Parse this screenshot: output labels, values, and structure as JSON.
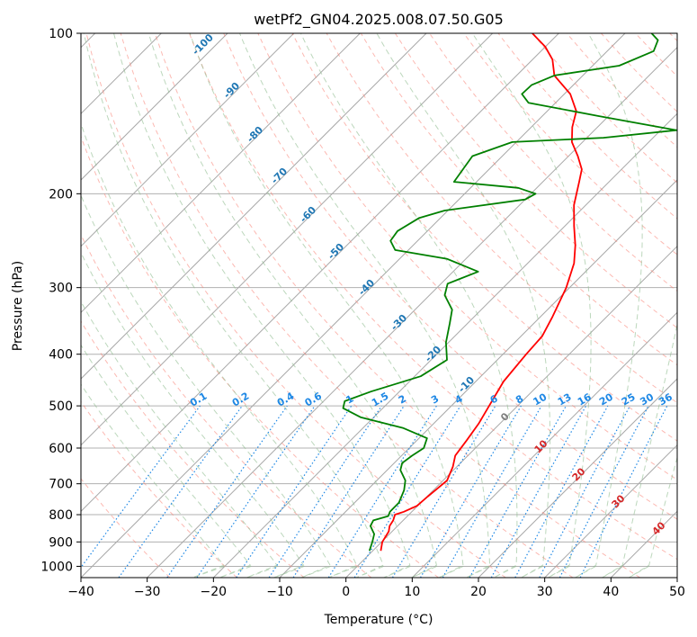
{
  "chart_data": {
    "type": "line",
    "title": "wetPf2_GN04.2025.008.07.50.G05",
    "xlabel": "Temperature (°C)",
    "ylabel": "Pressure (hPa)",
    "xlim": [
      -40,
      50
    ],
    "ylim": [
      1050,
      100
    ],
    "y_scale": "log",
    "x_ticks": [
      "−40",
      "−30",
      "−20",
      "−10",
      "0",
      "10",
      "20",
      "30",
      "40",
      "50"
    ],
    "y_ticks": [
      {
        "p": 100,
        "label": "100"
      },
      {
        "p": 200,
        "label": "200"
      },
      {
        "p": 300,
        "label": "300"
      },
      {
        "p": 400,
        "label": "400"
      },
      {
        "p": 500,
        "label": "500"
      },
      {
        "p": 600,
        "label": "600"
      },
      {
        "p": 700,
        "label": "700"
      },
      {
        "p": 800,
        "label": "800"
      },
      {
        "p": 900,
        "label": "900"
      },
      {
        "p": 1000,
        "label": "1000"
      }
    ],
    "skew_deg": 45,
    "grid": true,
    "series": [
      {
        "color": "#ff0000",
        "points": [
          {
            "p": 935,
            "t": 1.2
          },
          {
            "p": 900,
            "t": 0.1
          },
          {
            "p": 860,
            "t": -0.5
          },
          {
            "p": 840,
            "t": -1.2
          },
          {
            "p": 820,
            "t": -1.5
          },
          {
            "p": 800,
            "t": -2.1
          },
          {
            "p": 790,
            "t": -1.2
          },
          {
            "p": 770,
            "t": -0.1
          },
          {
            "p": 740,
            "t": 0.1
          },
          {
            "p": 720,
            "t": 0.3
          },
          {
            "p": 690,
            "t": 0.6
          },
          {
            "p": 650,
            "t": -0.6
          },
          {
            "p": 620,
            "t": -1.9
          },
          {
            "p": 580,
            "t": -2.5
          },
          {
            "p": 540,
            "t": -3.2
          },
          {
            "p": 500,
            "t": -4.3
          },
          {
            "p": 450,
            "t": -5.8
          },
          {
            "p": 400,
            "t": -6.5
          },
          {
            "p": 370,
            "t": -6.8
          },
          {
            "p": 340,
            "t": -8.2
          },
          {
            "p": 300,
            "t": -10.5
          },
          {
            "p": 270,
            "t": -13.0
          },
          {
            "p": 250,
            "t": -15.5
          },
          {
            "p": 230,
            "t": -18.6
          },
          {
            "p": 210,
            "t": -21.8
          },
          {
            "p": 190,
            "t": -24.5
          },
          {
            "p": 180,
            "t": -26.0
          },
          {
            "p": 170,
            "t": -28.6
          },
          {
            "p": 160,
            "t": -31.6
          },
          {
            "p": 150,
            "t": -33.8
          },
          {
            "p": 140,
            "t": -35.6
          },
          {
            "p": 130,
            "t": -39.1
          },
          {
            "p": 120,
            "t": -44.3
          },
          {
            "p": 112,
            "t": -47.0
          },
          {
            "p": 106,
            "t": -50.0
          },
          {
            "p": 100,
            "t": -54.0
          }
        ]
      },
      {
        "color": "#008000",
        "points": [
          {
            "p": 935,
            "t": -0.5
          },
          {
            "p": 900,
            "t": -1.4
          },
          {
            "p": 870,
            "t": -2.3
          },
          {
            "p": 840,
            "t": -4.1
          },
          {
            "p": 820,
            "t": -4.5
          },
          {
            "p": 805,
            "t": -2.9
          },
          {
            "p": 790,
            "t": -3.3
          },
          {
            "p": 760,
            "t": -3.3
          },
          {
            "p": 720,
            "t": -4.4
          },
          {
            "p": 690,
            "t": -5.7
          },
          {
            "p": 660,
            "t": -8.0
          },
          {
            "p": 640,
            "t": -8.8
          },
          {
            "p": 620,
            "t": -8.4
          },
          {
            "p": 600,
            "t": -7.8
          },
          {
            "p": 575,
            "t": -8.8
          },
          {
            "p": 550,
            "t": -14.0
          },
          {
            "p": 525,
            "t": -22.0
          },
          {
            "p": 505,
            "t": -26.0
          },
          {
            "p": 490,
            "t": -26.8
          },
          {
            "p": 470,
            "t": -24.3
          },
          {
            "p": 440,
            "t": -19.1
          },
          {
            "p": 410,
            "t": -17.6
          },
          {
            "p": 380,
            "t": -20.4
          },
          {
            "p": 350,
            "t": -22.7
          },
          {
            "p": 330,
            "t": -24.4
          },
          {
            "p": 310,
            "t": -27.7
          },
          {
            "p": 295,
            "t": -29.0
          },
          {
            "p": 280,
            "t": -26.2
          },
          {
            "p": 265,
            "t": -32.8
          },
          {
            "p": 255,
            "t": -42.0
          },
          {
            "p": 245,
            "t": -44.1
          },
          {
            "p": 235,
            "t": -44.5
          },
          {
            "p": 222,
            "t": -43.2
          },
          {
            "p": 215,
            "t": -40.5
          },
          {
            "p": 205,
            "t": -30.0
          },
          {
            "p": 200,
            "t": -29.3
          },
          {
            "p": 195,
            "t": -32.8
          },
          {
            "p": 190,
            "t": -43.4
          },
          {
            "p": 170,
            "t": -44.5
          },
          {
            "p": 160,
            "t": -40.6
          },
          {
            "p": 157,
            "t": -27.5
          },
          {
            "p": 152,
            "t": -17.6
          },
          {
            "p": 143,
            "t": -31.5
          },
          {
            "p": 135,
            "t": -44.1
          },
          {
            "p": 130,
            "t": -46.4
          },
          {
            "p": 125,
            "t": -46.3
          },
          {
            "p": 120,
            "t": -44.3
          },
          {
            "p": 115,
            "t": -36.0
          },
          {
            "p": 108,
            "t": -33.0
          },
          {
            "p": 103,
            "t": -34.0
          },
          {
            "p": 100,
            "t": -36.0
          }
        ]
      }
    ],
    "isotherm_labels": [
      "-100",
      "-90",
      "-80",
      "-70",
      "-60",
      "-50",
      "-40",
      "-30",
      "-20",
      "-10"
    ],
    "isotherm_label_values": [
      -100,
      -90,
      -80,
      -70,
      -60,
      -50,
      -40,
      -30,
      -20,
      -10
    ],
    "mixing_ratio_labels": [
      "0.1",
      "0.2",
      "0.4",
      "0.6",
      "1",
      "1.5",
      "2",
      "3",
      "4",
      "6",
      "8",
      "10",
      "13",
      "16",
      "20",
      "25",
      "30",
      "36"
    ],
    "mixing_ratio_values": [
      0.1,
      0.2,
      0.4,
      0.6,
      1,
      1.5,
      2,
      3,
      4,
      6,
      8,
      10,
      13,
      16,
      20,
      25,
      30,
      36
    ],
    "wet_bulb_labels": [
      "0",
      "10",
      "20",
      "30",
      "40"
    ],
    "wet_bulb_values": [
      0,
      10,
      20,
      30,
      40
    ],
    "colors": {
      "temperature": "#ff0000",
      "dewpoint": "#008000",
      "isotherm_label": "#1f77b4",
      "mixing_ratio": "#1e88e5",
      "dry_adiabat": "#fa8072",
      "moist_adiabat": "#8fbc8f",
      "wet_bulb_label_zero": "#808080",
      "wet_bulb_label": "#d62728"
    }
  }
}
